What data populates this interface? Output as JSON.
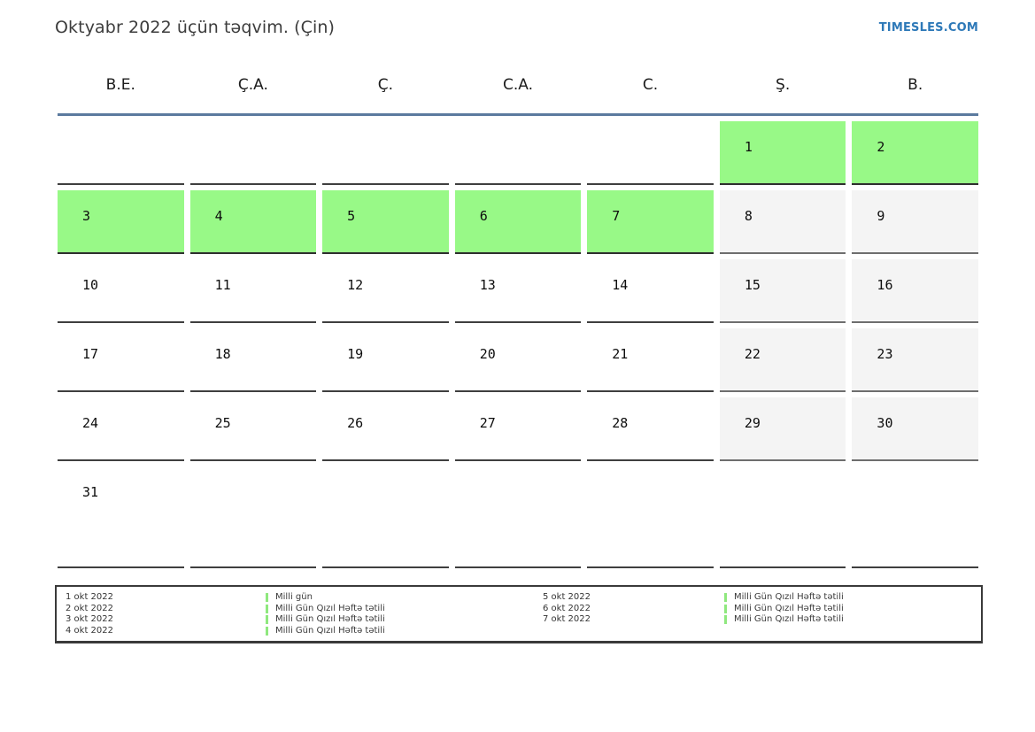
{
  "header": {
    "title": "Oktyabr 2022 üçün təqvim. (Çin)",
    "brand": "TIMESLES.COM"
  },
  "weekdays": [
    "B.E.",
    "Ç.A.",
    "Ç.",
    "C.A.",
    "C.",
    "Ş.",
    "B."
  ],
  "calendar": {
    "weeks": [
      [
        {
          "day": "",
          "type": "empty"
        },
        {
          "day": "",
          "type": "empty"
        },
        {
          "day": "",
          "type": "empty"
        },
        {
          "day": "",
          "type": "empty"
        },
        {
          "day": "",
          "type": "empty"
        },
        {
          "day": "1",
          "type": "holiday"
        },
        {
          "day": "2",
          "type": "holiday"
        }
      ],
      [
        {
          "day": "3",
          "type": "holiday"
        },
        {
          "day": "4",
          "type": "holiday"
        },
        {
          "day": "5",
          "type": "holiday"
        },
        {
          "day": "6",
          "type": "holiday"
        },
        {
          "day": "7",
          "type": "holiday"
        },
        {
          "day": "8",
          "type": "weekend"
        },
        {
          "day": "9",
          "type": "weekend"
        }
      ],
      [
        {
          "day": "10",
          "type": "normal"
        },
        {
          "day": "11",
          "type": "normal"
        },
        {
          "day": "12",
          "type": "normal"
        },
        {
          "day": "13",
          "type": "normal"
        },
        {
          "day": "14",
          "type": "normal"
        },
        {
          "day": "15",
          "type": "weekend"
        },
        {
          "day": "16",
          "type": "weekend"
        }
      ],
      [
        {
          "day": "17",
          "type": "normal"
        },
        {
          "day": "18",
          "type": "normal"
        },
        {
          "day": "19",
          "type": "normal"
        },
        {
          "day": "20",
          "type": "normal"
        },
        {
          "day": "21",
          "type": "normal"
        },
        {
          "day": "22",
          "type": "weekend"
        },
        {
          "day": "23",
          "type": "weekend"
        }
      ],
      [
        {
          "day": "24",
          "type": "normal"
        },
        {
          "day": "25",
          "type": "normal"
        },
        {
          "day": "26",
          "type": "normal"
        },
        {
          "day": "27",
          "type": "normal"
        },
        {
          "day": "28",
          "type": "normal"
        },
        {
          "day": "29",
          "type": "weekend"
        },
        {
          "day": "30",
          "type": "weekend"
        }
      ],
      [
        {
          "day": "31",
          "type": "normal"
        },
        {
          "day": "",
          "type": "empty"
        },
        {
          "day": "",
          "type": "empty"
        },
        {
          "day": "",
          "type": "empty"
        },
        {
          "day": "",
          "type": "empty"
        },
        {
          "day": "",
          "type": "empty"
        },
        {
          "day": "",
          "type": "empty"
        }
      ]
    ]
  },
  "legend": {
    "columns": [
      {
        "entries": [
          {
            "date": "1 okt 2022",
            "label": "Milli gün"
          },
          {
            "date": "2 okt 2022",
            "label": "Milli Gün Qızıl Həftə tətili"
          },
          {
            "date": "3 okt 2022",
            "label": "Milli Gün Qızıl Həftə tətili"
          },
          {
            "date": "4 okt 2022",
            "label": "Milli Gün Qızıl Həftə tətili"
          }
        ]
      },
      {
        "entries": [
          {
            "date": "5 okt 2022",
            "label": "Milli Gün Qızıl Həftə tətili"
          },
          {
            "date": "6 okt 2022",
            "label": "Milli Gün Qızıl Həftə tətili"
          },
          {
            "date": "7 okt 2022",
            "label": "Milli Gün Qızıl Həftə tətili"
          }
        ]
      }
    ]
  },
  "colors": {
    "holiday_green": "#98f987",
    "weekend_gray": "#f4f4f4",
    "brand_blue": "#2e79b8",
    "header_rule": "#5b7a9e",
    "cell_border": "#3f3f3f",
    "weekend_border": "#6e6e6e",
    "legend_mark_green": "#8fe87e"
  }
}
